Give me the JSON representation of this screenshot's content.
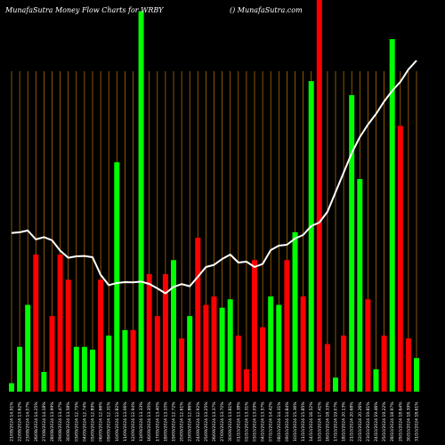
{
  "chart_data": {
    "type": "bar",
    "title": "MunafaSutra  Money Flow  Charts for WRBY",
    "subtitle": "() MunafaSutra.com",
    "colors": {
      "background": "#000000",
      "up": "#00ff00",
      "down": "#ff0000",
      "line": "#ffffff",
      "grid": "#c47a00"
    },
    "grid": true,
    "categories": [
      "21/08/2024",
      "22/08/2024",
      "23/08/2024",
      "26/08/2024",
      "27/08/2024",
      "28/08/2024",
      "29/08/2024",
      "30/08/2024",
      "03/09/2024",
      "04/09/2024",
      "05/09/2024",
      "06/09/2024",
      "09/09/2024",
      "10/09/2024",
      "11/09/2024",
      "12/09/2024",
      "13/09/2024",
      "16/09/2024",
      "17/09/2024",
      "18/09/2024",
      "19/09/2024",
      "20/09/2024",
      "23/09/2024",
      "24/09/2024",
      "25/09/2024",
      "26/09/2024",
      "27/09/2024",
      "30/09/2024",
      "01/10/2024",
      "02/10/2024",
      "03/10/2024",
      "04/10/2024",
      "07/10/2024",
      "08/10/2024",
      "09/10/2024",
      "10/10/2024",
      "11/10/2024",
      "14/10/2024",
      "15/10/2024",
      "16/10/2024",
      "17/10/2024",
      "18/10/2024",
      "21/10/2024",
      "22/10/2024",
      "23/10/2024",
      "24/10/2024",
      "25/10/2024",
      "28/10/2024",
      "29/10/2024",
      "30/10/2024",
      "31/10/2024"
    ],
    "tick_labels": [
      "21/08/2024 14.91%",
      "22/08/2024 13.62%",
      "23/08/2024 14.07%",
      "26/08/2024 14.25%",
      "27/08/2024 14.18%",
      "28/08/2024 13.99%",
      "29/08/2024 13.47%",
      "30/08/2024 13.58%",
      "03/09/2024 12.75%",
      "04/09/2024 12.74%",
      "05/09/2024 12.89%",
      "06/09/2024 12.66%",
      "09/09/2024 12.31%",
      "10/09/2024 12.82%",
      "11/09/2024 13.06%",
      "12/09/2024 12.94%",
      "13/09/2024 13.33%",
      "16/09/2024 13.35%",
      "17/09/2024 13.40%",
      "18/09/2024 13.10%",
      "19/09/2024 12.72%",
      "20/09/2024 12.61%",
      "23/09/2024 12.86%",
      "24/09/2024 12.92%",
      "25/09/2024 13.25%",
      "26/09/2024 13.37%",
      "27/09/2024 13.70%",
      "30/09/2024 13.81%",
      "01/10/2024 13.38%",
      "02/10/2024 13.31%",
      "03/10/2024 13.09%",
      "04/10/2024 13.57%",
      "07/10/2024 14.42%",
      "08/10/2024 14.31%",
      "09/10/2024 14.84%",
      "10/10/2024 15.36%",
      "11/10/2024 15.85%",
      "14/10/2024 16.52%",
      "15/10/2024 17.41%",
      "16/10/2024 18.33%",
      "17/10/2024 19.07%",
      "18/10/2024 20.13%",
      "21/10/2024 20.68%",
      "22/10/2024 20.26%",
      "23/10/2024 19.81%",
      "24/10/2024 19.46%",
      "25/10/2024 19.22%",
      "28/10/2024 18.97%",
      "29/10/2024 18.64%",
      "30/10/2024 18.39%",
      "31/10/2024 18.61%"
    ],
    "volume": [
      3,
      16,
      31,
      49,
      7,
      27,
      49,
      40,
      16,
      16,
      15,
      40,
      20,
      82,
      22,
      22,
      136,
      42,
      27,
      42,
      47,
      19,
      27,
      55,
      31,
      34,
      30,
      33,
      20,
      8,
      47,
      23,
      34,
      31,
      47,
      57,
      34,
      111,
      140,
      17,
      5,
      20,
      106,
      76,
      33,
      8,
      20,
      126,
      95,
      19,
      12
    ],
    "volume_up": [
      true,
      true,
      true,
      false,
      true,
      false,
      false,
      false,
      true,
      true,
      true,
      false,
      true,
      true,
      true,
      false,
      true,
      false,
      false,
      false,
      true,
      false,
      true,
      false,
      false,
      false,
      true,
      true,
      false,
      false,
      false,
      false,
      true,
      true,
      false,
      true,
      false,
      true,
      false,
      false,
      true,
      false,
      true,
      true,
      false,
      true,
      false,
      true,
      false,
      false,
      true
    ],
    "price": [
      14.91,
      14.95,
      15.05,
      14.55,
      14.68,
      14.5,
      13.92,
      13.52,
      13.6,
      13.62,
      13.55,
      12.56,
      11.98,
      12.1,
      12.15,
      12.14,
      12.18,
      12.05,
      11.8,
      11.52,
      11.88,
      12.04,
      11.92,
      12.45,
      13.0,
      13.12,
      13.45,
      13.7,
      13.25,
      13.3,
      13.0,
      13.17,
      13.95,
      14.2,
      14.25,
      14.6,
      14.8,
      15.3,
      15.5,
      16.1,
      17.2,
      18.3,
      19.4,
      20.3,
      21.0,
      21.6,
      22.3,
      22.9,
      23.4,
      24.1,
      24.6
    ]
  }
}
